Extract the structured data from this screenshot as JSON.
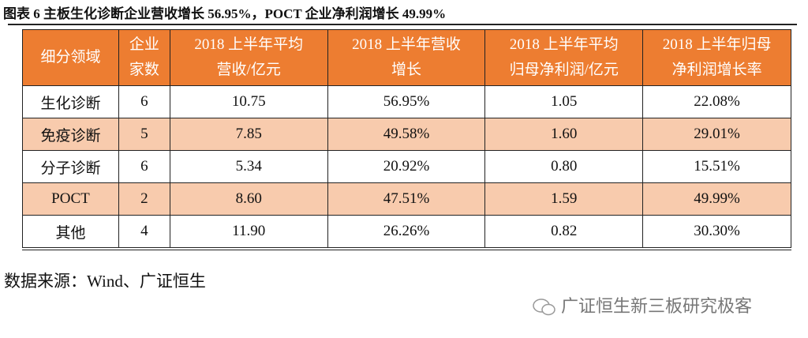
{
  "title": "图表 6 主板生化诊断企业营收增长 56.95%，POCT 企业净利润增长 49.99%",
  "table": {
    "header": [
      [
        "细分领域"
      ],
      [
        "企业",
        "家数"
      ],
      [
        "2018 上半年平均",
        "营收/亿元"
      ],
      [
        "2018 上半年营收",
        "增长"
      ],
      [
        "2018 上半年平均",
        "归母净利润/亿元"
      ],
      [
        "2018 上半年归母",
        "净利润增长率"
      ]
    ],
    "rows": [
      [
        "生化诊断",
        "6",
        "10.75",
        "56.95%",
        "1.05",
        "22.08%"
      ],
      [
        "免疫诊断",
        "5",
        "7.85",
        "49.58%",
        "1.60",
        "29.01%"
      ],
      [
        "分子诊断",
        "6",
        "5.34",
        "20.92%",
        "0.80",
        "15.51%"
      ],
      [
        "POCT",
        "2",
        "8.60",
        "47.51%",
        "1.59",
        "49.99%"
      ],
      [
        "其他",
        "4",
        "11.90",
        "26.26%",
        "0.82",
        "30.30%"
      ]
    ]
  },
  "source": "数据来源：Wind、广证恒生",
  "watermark": "广证恒生新三板研究极客"
}
